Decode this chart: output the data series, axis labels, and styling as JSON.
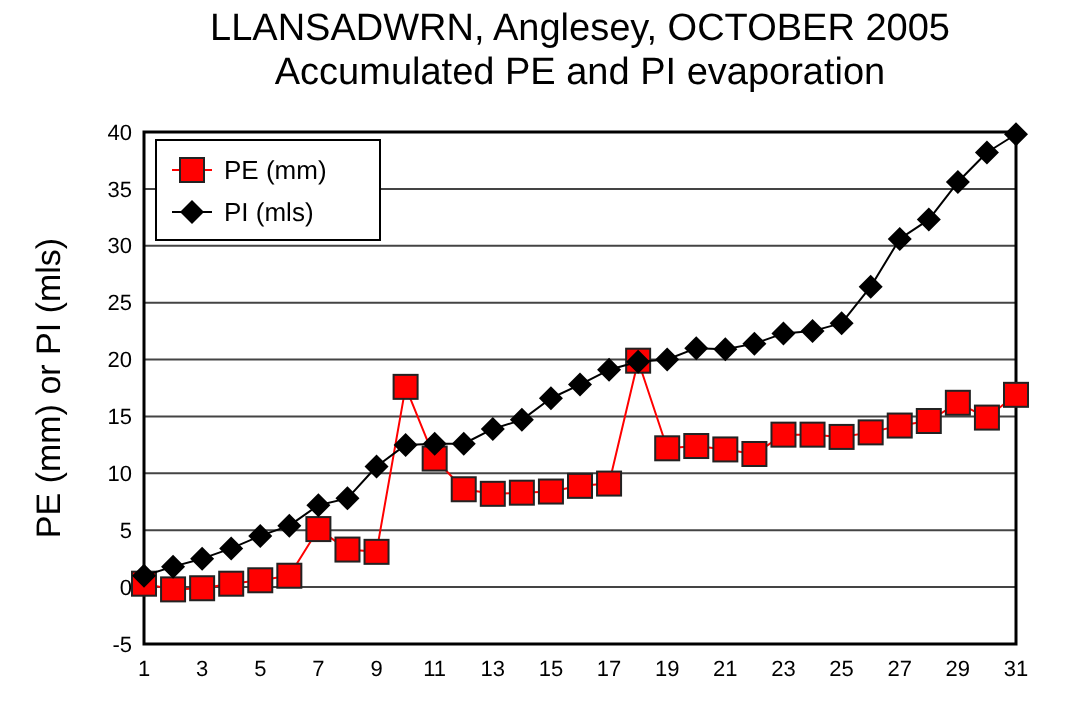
{
  "chart_data": {
    "type": "line",
    "title": "LLANSADWRN, Anglesey, OCTOBER 2005\nAccumulated PE and PI evaporation",
    "ylabel": "PE (mm) or PI (mls)",
    "x": [
      1,
      2,
      3,
      4,
      5,
      6,
      7,
      8,
      9,
      10,
      11,
      12,
      13,
      14,
      15,
      16,
      17,
      18,
      19,
      20,
      21,
      22,
      23,
      24,
      25,
      26,
      27,
      28,
      29,
      30,
      31
    ],
    "xlim": [
      1,
      31
    ],
    "xticks": [
      1,
      3,
      5,
      7,
      9,
      11,
      13,
      15,
      17,
      19,
      21,
      23,
      25,
      27,
      29,
      31
    ],
    "ylim": [
      -5,
      40
    ],
    "yticks": [
      -5,
      0,
      5,
      10,
      15,
      20,
      25,
      30,
      35,
      40
    ],
    "grid": "y",
    "legend": "top left",
    "series": [
      {
        "name": "PE (mm)",
        "color": "#ff0000",
        "marker": "square",
        "values": [
          0.3,
          -0.2,
          -0.1,
          0.3,
          0.6,
          1.0,
          5.1,
          3.3,
          3.1,
          17.6,
          11.3,
          8.6,
          8.2,
          8.3,
          8.4,
          8.9,
          9.1,
          19.9,
          12.2,
          12.4,
          12.1,
          11.7,
          13.4,
          13.4,
          13.2,
          13.6,
          14.2,
          14.6,
          16.2,
          14.9,
          16.9
        ]
      },
      {
        "name": "PI (mls)",
        "color": "#000000",
        "marker": "diamond",
        "values": [
          1.0,
          1.8,
          2.5,
          3.4,
          4.5,
          5.4,
          7.2,
          7.8,
          10.6,
          12.5,
          12.6,
          12.6,
          13.9,
          14.7,
          16.6,
          17.8,
          19.1,
          19.8,
          20.0,
          21.0,
          20.9,
          21.4,
          22.3,
          22.5,
          23.2,
          26.4,
          30.6,
          32.3,
          35.6,
          38.2,
          39.8
        ]
      }
    ]
  }
}
